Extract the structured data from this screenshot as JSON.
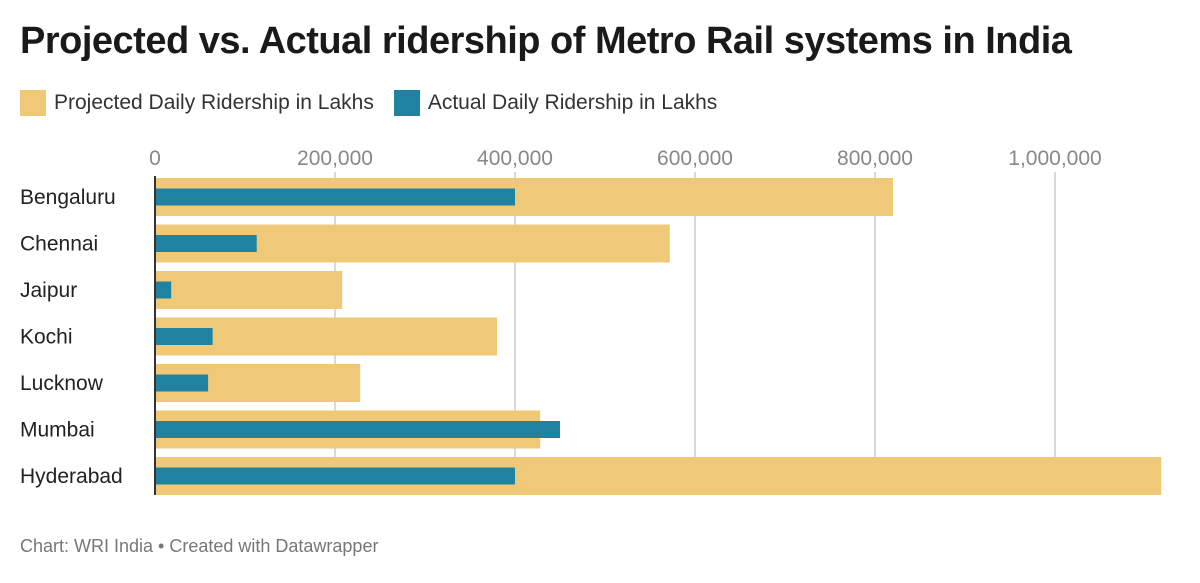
{
  "chart_data": {
    "type": "bar",
    "orientation": "horizontal",
    "title": "Projected vs. Actual ridership of Metro Rail systems in India",
    "categories": [
      "Bengaluru",
      "Chennai",
      "Jaipur",
      "Kochi",
      "Lucknow",
      "Mumbai",
      "Hyderabad"
    ],
    "series": [
      {
        "name": "Projected Daily Ridership in Lakhs",
        "color": "#efc977",
        "values": [
          820000,
          572000,
          208000,
          380000,
          228000,
          428000,
          1118000
        ]
      },
      {
        "name": "Actual Daily Ridership in Lakhs",
        "color": "#1f82a1",
        "values": [
          400000,
          113000,
          18000,
          64000,
          59000,
          450000,
          400000
        ]
      }
    ],
    "xticks": [
      0,
      200000,
      400000,
      600000,
      800000,
      1000000
    ],
    "xtick_labels": [
      "0",
      "200,000",
      "400,000",
      "600,000",
      "800,000",
      "1,000,000"
    ],
    "xlim": [
      0,
      1120000
    ],
    "grid": true,
    "legend": "top-left"
  },
  "footer": "Chart: WRI India • Created with Datawrapper"
}
